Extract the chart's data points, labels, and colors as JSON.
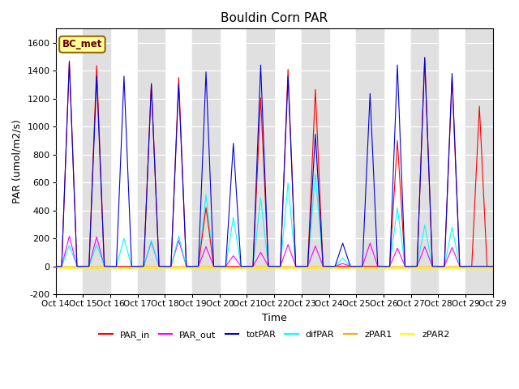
{
  "title": "Bouldin Corn PAR",
  "ylabel": "PAR (umol/m2/s)",
  "xlabel": "Time",
  "ylim": [
    -200,
    1700
  ],
  "yticks": [
    -200,
    0,
    200,
    400,
    600,
    800,
    1000,
    1200,
    1400,
    1600
  ],
  "n_days": 16,
  "start_day": 14,
  "legend_labels": [
    "PAR_in",
    "PAR_out",
    "totPAR",
    "difPAR",
    "zPAR1",
    "zPAR2"
  ],
  "legend_colors": [
    "#ff0000",
    "#ff00ff",
    "#0000dd",
    "#00ffff",
    "#ffaa00",
    "#ffff00"
  ],
  "annotation_text": "BC_met",
  "annotation_bg": "#ffff99",
  "annotation_border": "#996600",
  "bg_color": "#ffffff",
  "bg_stripe_color": "#e0e0e0",
  "grid_color": "#c8c8c8",
  "line_colors": {
    "PAR_in": "#ff0000",
    "PAR_out": "#ff00ff",
    "totPAR": "#0000dd",
    "difPAR": "#00ffff",
    "zPAR1": "#ffaa00",
    "zPAR2": "#ffff00"
  },
  "peaks": [
    {
      "day": 0,
      "PAR_in": 1470,
      "PAR_out": 215,
      "totPAR": 1460,
      "difPAR": 150
    },
    {
      "day": 1,
      "PAR_in": 1435,
      "PAR_out": 210,
      "totPAR": 1360,
      "difPAR": 155
    },
    {
      "day": 2,
      "PAR_in": 0,
      "PAR_out": 0,
      "totPAR": 1360,
      "difPAR": 200
    },
    {
      "day": 3,
      "PAR_in": 1310,
      "PAR_out": 175,
      "totPAR": 1300,
      "difPAR": 185
    },
    {
      "day": 4,
      "PAR_in": 1350,
      "PAR_out": 185,
      "totPAR": 1300,
      "difPAR": 215
    },
    {
      "day": 5,
      "PAR_in": 420,
      "PAR_out": 140,
      "totPAR": 1390,
      "difPAR": 510
    },
    {
      "day": 6,
      "PAR_in": 0,
      "PAR_out": 75,
      "totPAR": 880,
      "difPAR": 350
    },
    {
      "day": 7,
      "PAR_in": 1205,
      "PAR_out": 100,
      "totPAR": 1440,
      "difPAR": 490
    },
    {
      "day": 8,
      "PAR_in": 1410,
      "PAR_out": 155,
      "totPAR": 1360,
      "difPAR": 595
    },
    {
      "day": 9,
      "PAR_in": 1265,
      "PAR_out": 145,
      "totPAR": 945,
      "difPAR": 660
    },
    {
      "day": 10,
      "PAR_in": 0,
      "PAR_out": 20,
      "totPAR": 165,
      "difPAR": 60
    },
    {
      "day": 11,
      "PAR_in": 0,
      "PAR_out": 165,
      "totPAR": 1235,
      "difPAR": 0
    },
    {
      "day": 12,
      "PAR_in": 900,
      "PAR_out": 130,
      "totPAR": 1440,
      "difPAR": 420
    },
    {
      "day": 13,
      "PAR_in": 1495,
      "PAR_out": 140,
      "totPAR": 1490,
      "difPAR": 295
    },
    {
      "day": 14,
      "PAR_in": 1345,
      "PAR_out": 135,
      "totPAR": 1380,
      "difPAR": 280
    },
    {
      "day": 15,
      "PAR_in": 1145,
      "PAR_out": 0,
      "totPAR": 0,
      "difPAR": 0
    }
  ]
}
